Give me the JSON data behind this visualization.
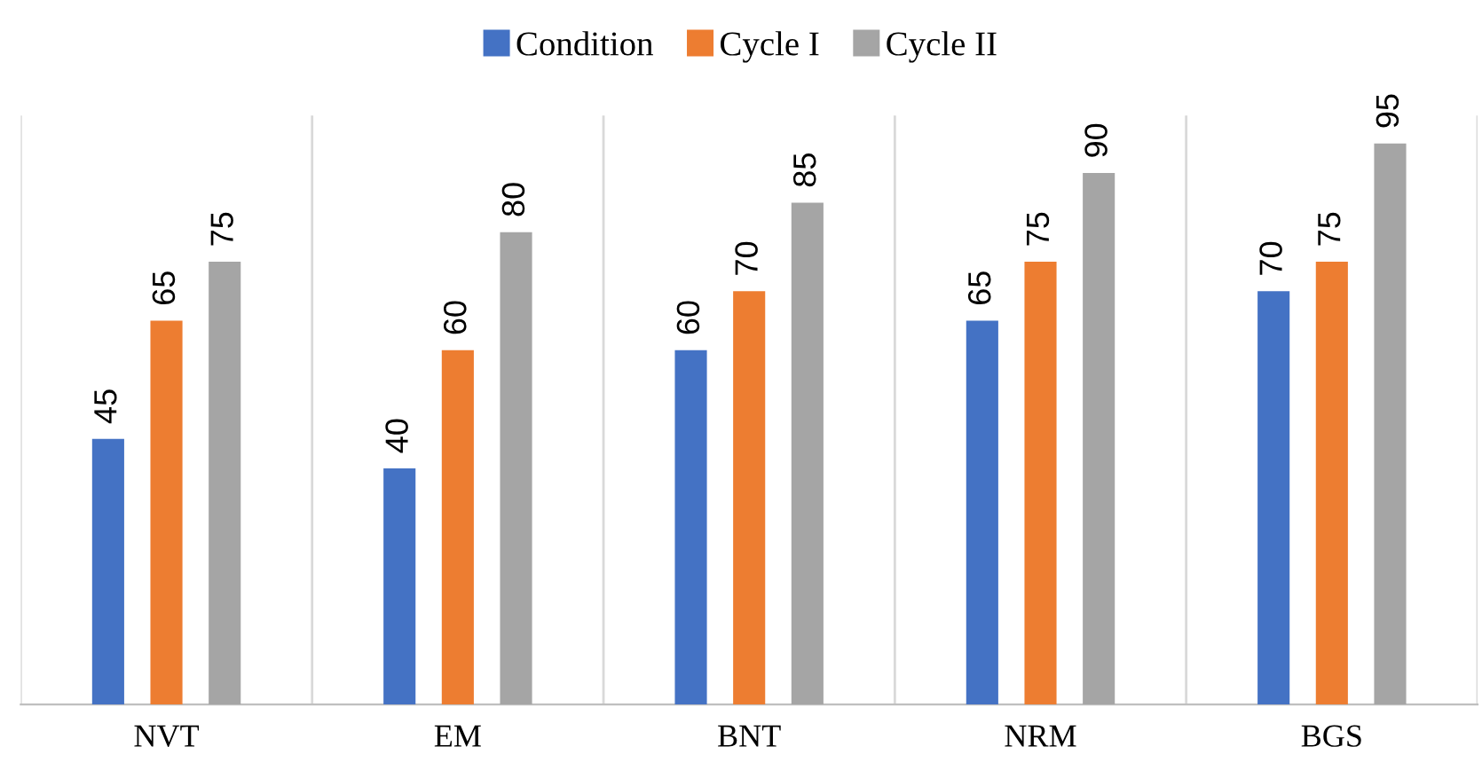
{
  "chart_data": {
    "type": "bar",
    "categories": [
      "NVT",
      "EM",
      "BNT",
      "NRM",
      "BGS"
    ],
    "series": [
      {
        "name": "Condition",
        "color": "#4472c4",
        "values": [
          45,
          40,
          60,
          65,
          70
        ]
      },
      {
        "name": "Cycle I",
        "color": "#ed7d31",
        "values": [
          65,
          60,
          70,
          75,
          75
        ]
      },
      {
        "name": "Cycle II",
        "color": "#a5a5a5",
        "values": [
          75,
          80,
          85,
          90,
          95
        ]
      }
    ],
    "data_labels": true,
    "legend": "top",
    "grid": "x"
  }
}
